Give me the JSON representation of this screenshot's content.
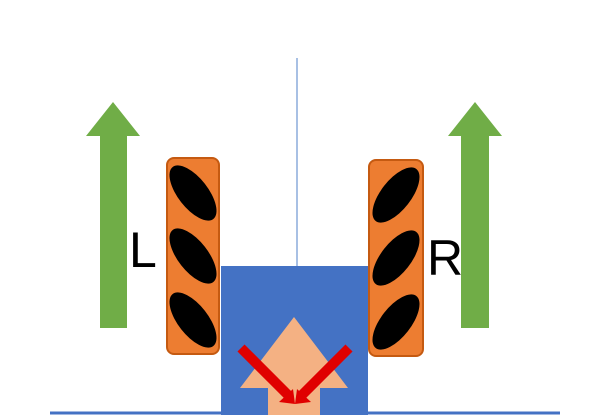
{
  "labels": {
    "left_wheel": "L",
    "right_wheel": "R"
  },
  "colors": {
    "motion_arrow": "#70ad47",
    "wheel_body": "#ed7d31",
    "wheel_stroke": "#c55a11",
    "roller": "#000000",
    "robot_body": "#4472c4",
    "robot_arrow": "#f4b183",
    "force_arrow": "#e00000",
    "center_line": "#a8c0e4",
    "ground_line": "#4472c4"
  },
  "icons": {
    "left_motion": "arrow-up-icon",
    "right_motion": "arrow-up-icon",
    "robot_heading": "arrow-up-icon",
    "force_vectors": "converging-arrows-icon"
  }
}
